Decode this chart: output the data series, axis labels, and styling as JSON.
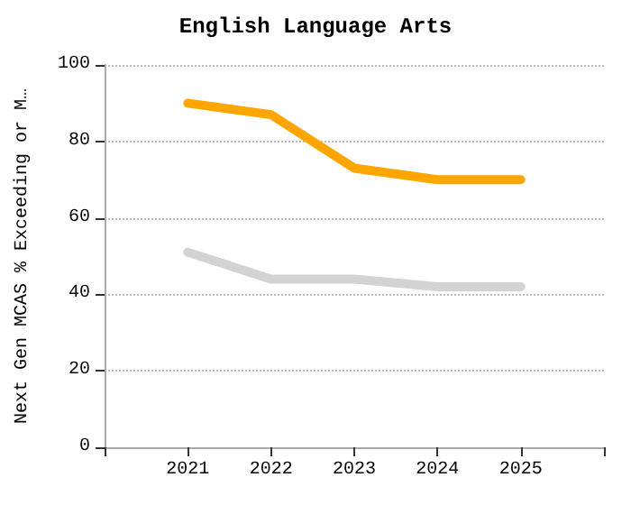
{
  "chart_data": {
    "type": "line",
    "title": "English Language Arts",
    "ylabel": "Next Gen MCAS % Exceeding or M…",
    "x": [
      2021,
      2022,
      2023,
      2024,
      2025
    ],
    "series": [
      {
        "color": "#ffa500",
        "values": [
          90,
          87,
          73,
          70,
          70
        ]
      },
      {
        "color": "#d3d3d3",
        "values": [
          51,
          44,
          44,
          42,
          42
        ]
      }
    ],
    "xlim": [
      2020,
      2026
    ],
    "xticks": [
      {
        "value": 2020,
        "label": null
      },
      2021,
      2022,
      2023,
      2024,
      2025,
      {
        "value": 2026,
        "label": null
      }
    ],
    "ylim": [
      0,
      100
    ],
    "yticks": [
      0,
      20,
      40,
      60,
      80,
      100
    ],
    "grid": "y",
    "marker": "none",
    "line_style": "solid"
  }
}
